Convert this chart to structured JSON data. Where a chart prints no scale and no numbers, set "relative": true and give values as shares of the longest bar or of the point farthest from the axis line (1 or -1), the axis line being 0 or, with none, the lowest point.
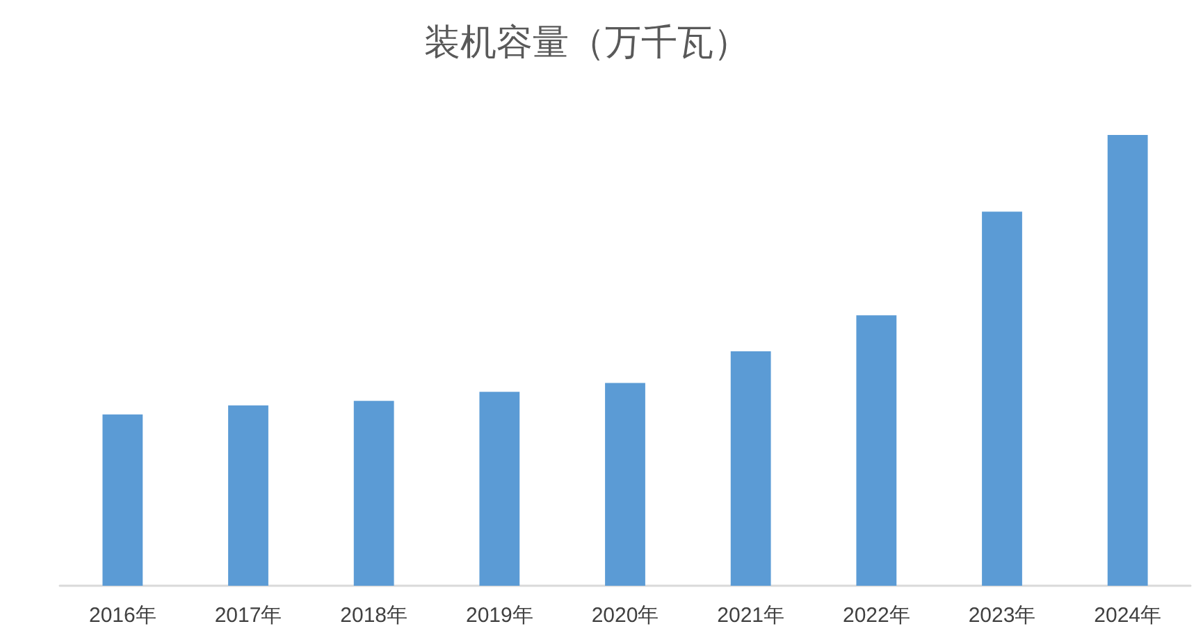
{
  "chart_data": {
    "type": "bar",
    "title": "装机容量（万千瓦）",
    "categories": [
      "2016年",
      "2017年",
      "2018年",
      "2019年",
      "2020年",
      "2021年",
      "2022年",
      "2023年",
      "2024年"
    ],
    "values": [
      0.38,
      0.4,
      0.41,
      0.43,
      0.45,
      0.52,
      0.6,
      0.83,
      1
    ],
    "color": "#5b9bd5",
    "relative": true
  }
}
